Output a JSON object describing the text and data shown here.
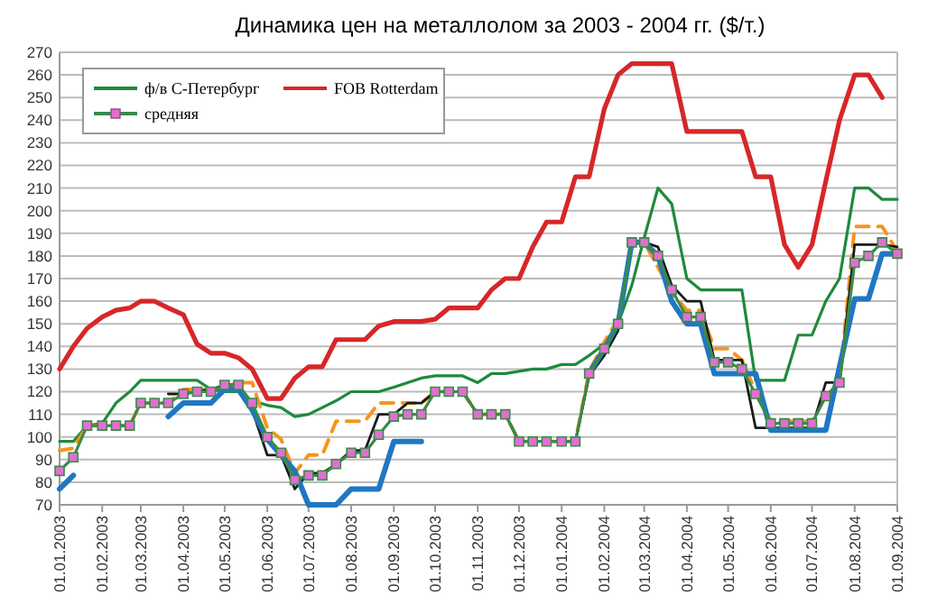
{
  "chart_data": {
    "type": "line",
    "title": "Динамика цен на металлолом за 2003 - 2004 гг. ($/т.)",
    "x": [
      "2003-01-01",
      "2003-01-11",
      "2003-01-21",
      "2003-02-01",
      "2003-02-11",
      "2003-02-21",
      "2003-03-01",
      "2003-03-11",
      "2003-03-21",
      "2003-04-01",
      "2003-04-11",
      "2003-04-21",
      "2003-05-01",
      "2003-05-11",
      "2003-05-21",
      "2003-06-01",
      "2003-06-11",
      "2003-06-21",
      "2003-07-01",
      "2003-07-11",
      "2003-07-21",
      "2003-08-01",
      "2003-08-11",
      "2003-08-21",
      "2003-09-01",
      "2003-09-11",
      "2003-09-21",
      "2003-10-01",
      "2003-10-11",
      "2003-10-21",
      "2003-11-01",
      "2003-11-11",
      "2003-11-21",
      "2003-12-01",
      "2003-12-11",
      "2003-12-21",
      "2004-01-01",
      "2004-01-11",
      "2004-01-21",
      "2004-02-01",
      "2004-02-11",
      "2004-02-21",
      "2004-03-01",
      "2004-03-11",
      "2004-03-21",
      "2004-04-01",
      "2004-04-11",
      "2004-04-21",
      "2004-05-01",
      "2004-05-11",
      "2004-05-21",
      "2004-06-01",
      "2004-06-11",
      "2004-06-21",
      "2004-07-01",
      "2004-07-11",
      "2004-07-21",
      "2004-08-01",
      "2004-08-11",
      "2004-08-21",
      "2004-09-01"
    ],
    "series": [
      {
        "name": "ф/в С-Петербург",
        "color": "#1e8a3c",
        "values": [
          98,
          98,
          105,
          106,
          115,
          120,
          125,
          125,
          125,
          125,
          125,
          121,
          120,
          120,
          116,
          114,
          113,
          109,
          110,
          113,
          116,
          120,
          120,
          120,
          122,
          124,
          126,
          127,
          127,
          127,
          124,
          128,
          128,
          129,
          130,
          130,
          132,
          132,
          136,
          141,
          150,
          167,
          188,
          210,
          203,
          170,
          165,
          165,
          165,
          165,
          125,
          125,
          125,
          145,
          145,
          160,
          170,
          210,
          210,
          205,
          205
        ]
      },
      {
        "color": "#f7941d",
        "line_style": "dashed",
        "values": [
          94,
          95,
          105,
          105,
          105,
          105,
          115,
          115,
          115,
          121,
          121,
          121,
          122,
          124,
          124,
          104,
          99,
          84,
          92,
          92,
          107,
          107,
          107,
          115,
          115,
          115,
          115,
          120,
          120,
          120,
          110,
          110,
          110,
          98,
          98,
          98,
          98,
          98,
          129,
          142,
          152,
          186,
          186,
          175,
          164,
          156,
          156,
          139,
          139,
          134,
          120,
          107,
          107,
          107,
          107,
          118,
          124,
          193,
          193,
          193,
          182
        ]
      },
      {
        "color": "#1a1a1a",
        "values": [
          null,
          null,
          null,
          null,
          null,
          null,
          null,
          null,
          119,
          119,
          120,
          121,
          123,
          123,
          112,
          92,
          92,
          77,
          84,
          84,
          88,
          94,
          94,
          110,
          110,
          115,
          115,
          120,
          120,
          120,
          110,
          110,
          110,
          98,
          98,
          98,
          98,
          98,
          127,
          136,
          147,
          186,
          186,
          184,
          167,
          160,
          160,
          134,
          134,
          134,
          104,
          104,
          104,
          104,
          104,
          124,
          124,
          185,
          185,
          185,
          184
        ]
      },
      {
        "color": "#1f77c4",
        "values": [
          77,
          83,
          null,
          null,
          null,
          null,
          null,
          null,
          109,
          115,
          115,
          115,
          121,
          121,
          112,
          99,
          92,
          85,
          70,
          70,
          70,
          77,
          77,
          77,
          98,
          98,
          98,
          null,
          null,
          null,
          null,
          null,
          null,
          null,
          null,
          null,
          null,
          null,
          128,
          139,
          150,
          186,
          186,
          180,
          160,
          150,
          150,
          128,
          128,
          128,
          128,
          103,
          103,
          103,
          103,
          103,
          131,
          161,
          161,
          181,
          181
        ]
      },
      {
        "name": "средняя",
        "color": "#3a8a4a",
        "marker": "square",
        "values": [
          85,
          91,
          105,
          105,
          105,
          105,
          115,
          115,
          115,
          119,
          120,
          120,
          123,
          123,
          115,
          100,
          93,
          81,
          83,
          83,
          88,
          93,
          93,
          101,
          109,
          110,
          110,
          120,
          120,
          120,
          110,
          110,
          110,
          98,
          98,
          98,
          98,
          98,
          128,
          139,
          150,
          186,
          186,
          180,
          165,
          153,
          153,
          133,
          133,
          130,
          119,
          106,
          106,
          106,
          106,
          118,
          124,
          177,
          180,
          186,
          181
        ]
      },
      {
        "name": "FOB Rotterdam",
        "color": "#d62728",
        "values": [
          130,
          140,
          148,
          153,
          156,
          157,
          160,
          160,
          157,
          154,
          141,
          137,
          137,
          135,
          130,
          117,
          117,
          126,
          131,
          131,
          143,
          143,
          143,
          149,
          151,
          151,
          151,
          152,
          157,
          157,
          157,
          165,
          170,
          170,
          184,
          195,
          195,
          215,
          215,
          245,
          260,
          265,
          265,
          265,
          265,
          235,
          235,
          235,
          235,
          235,
          215,
          215,
          185,
          175,
          185,
          213,
          240,
          260,
          260,
          250,
          null
        ]
      }
    ],
    "xlim": [
      "2003-01-01",
      "2004-09-01"
    ],
    "xticks": [
      {
        "value": "2003-01-01",
        "label": "01.01.2003"
      },
      {
        "value": "2003-02-01",
        "label": "01.02.2003"
      },
      {
        "value": "2003-03-01",
        "label": "01.03.2003"
      },
      {
        "value": "2003-04-01",
        "label": "01.04.2003"
      },
      {
        "value": "2003-05-01",
        "label": "01.05.2003"
      },
      {
        "value": "2003-06-01",
        "label": "01.06.2003"
      },
      {
        "value": "2003-07-01",
        "label": "01.07.2003"
      },
      {
        "value": "2003-08-01",
        "label": "01.08.2003"
      },
      {
        "value": "2003-09-01",
        "label": "01.09.2003"
      },
      {
        "value": "2003-10-01",
        "label": "01.10.2003"
      },
      {
        "value": "2003-11-01",
        "label": "01.11.2003"
      },
      {
        "value": "2003-12-01",
        "label": "01.12.2003"
      },
      {
        "value": "2004-01-01",
        "label": "01.01.2004"
      },
      {
        "value": "2004-02-01",
        "label": "01.02.2004"
      },
      {
        "value": "2004-03-01",
        "label": "01.03.2004"
      },
      {
        "value": "2004-04-01",
        "label": "01.04.2004"
      },
      {
        "value": "2004-05-01",
        "label": "01.05.2004"
      },
      {
        "value": "2004-06-01",
        "label": "01.06.2004"
      },
      {
        "value": "2004-07-01",
        "label": "01.07.2004"
      },
      {
        "value": "2004-08-01",
        "label": "01.08.2004"
      },
      {
        "value": "2004-09-01",
        "label": "01.09.2004"
      }
    ],
    "ylim": [
      70,
      270
    ],
    "yticks": [
      70,
      80,
      90,
      100,
      110,
      120,
      130,
      140,
      150,
      160,
      170,
      180,
      190,
      200,
      210,
      220,
      230,
      240,
      250,
      260,
      270
    ],
    "grid": "y",
    "legend": "top left"
  }
}
